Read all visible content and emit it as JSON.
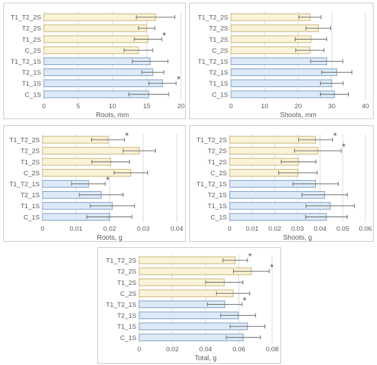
{
  "colors": {
    "series_1S_fill": "#dceaf7",
    "series_1S_stroke": "#7a9cc4",
    "series_2S_fill": "#fbf3d8",
    "series_2S_stroke": "#c8b274",
    "error_bar": "#595959",
    "gridline": "#d9d9d9",
    "axis_text": "#595959"
  },
  "chart_data": [
    {
      "type": "bar",
      "orientation": "horizontal",
      "xlabel": "Roots, mm",
      "xlim": [
        0,
        20
      ],
      "xticks": [
        "0",
        "5",
        "10",
        "15",
        "20"
      ],
      "tick_values": [
        0,
        5,
        10,
        15,
        20
      ],
      "categories": [
        "T1_T2_2S",
        "T2_2S",
        "T1_2S",
        "C_2S",
        "T1_T2_1S",
        "T2_1S",
        "T1_1S",
        "C_1S"
      ],
      "groups": [
        "2S",
        "2S",
        "2S",
        "2S",
        "1S",
        "1S",
        "1S",
        "1S"
      ],
      "values": [
        16.3,
        15.0,
        15.2,
        13.8,
        15.5,
        15.9,
        17.3,
        15.3
      ],
      "errors": [
        2.8,
        1.2,
        2.0,
        2.1,
        2.6,
        1.6,
        2.0,
        2.9
      ],
      "significant": [
        false,
        false,
        true,
        false,
        false,
        false,
        true,
        false
      ],
      "marker": "*",
      "grid": true
    },
    {
      "type": "bar",
      "orientation": "horizontal",
      "xlabel": "Shoots, mm",
      "xlim": [
        0,
        40
      ],
      "xticks": [
        "0",
        "10",
        "20",
        "30",
        "40"
      ],
      "tick_values": [
        0,
        10,
        20,
        30,
        40
      ],
      "categories": [
        "T1_T2_2S",
        "T2_2S",
        "T1_2S",
        "C_2S",
        "T1_T2_1S",
        "T2_1S",
        "T1_1S",
        "C_1S"
      ],
      "groups": [
        "2S",
        "2S",
        "2S",
        "2S",
        "1S",
        "1S",
        "1S",
        "1S"
      ],
      "values": [
        23.5,
        26.0,
        23.8,
        23.5,
        28.5,
        31.5,
        30.0,
        30.8
      ],
      "errors": [
        3.3,
        3.7,
        4.7,
        4.2,
        4.8,
        4.5,
        3.4,
        4.2
      ],
      "significant": [
        false,
        false,
        false,
        false,
        false,
        false,
        false,
        false
      ],
      "marker": "*",
      "grid": true
    },
    {
      "type": "bar",
      "orientation": "horizontal",
      "xlabel": "Roots, g",
      "xlim": [
        0,
        0.04
      ],
      "xticks": [
        "0",
        "0.01",
        "0.02",
        "0.03",
        "0.04"
      ],
      "tick_values": [
        0,
        0.01,
        0.02,
        0.03,
        0.04
      ],
      "categories": [
        "T1_T2_2S",
        "T2_2S",
        "T1_2S",
        "C_2S",
        "T1_T2_1S",
        "T2_1S",
        "T1_1S",
        "C_1S"
      ],
      "groups": [
        "2S",
        "2S",
        "2S",
        "2S",
        "1S",
        "1S",
        "1S",
        "1S"
      ],
      "values": [
        0.0195,
        0.0288,
        0.0203,
        0.0263,
        0.0137,
        0.0175,
        0.0208,
        0.0199
      ],
      "errors": [
        0.0049,
        0.0048,
        0.0056,
        0.005,
        0.005,
        0.0065,
        0.0066,
        0.0067
      ],
      "significant": [
        true,
        false,
        false,
        false,
        true,
        false,
        false,
        false
      ],
      "marker": "*",
      "grid": true
    },
    {
      "type": "bar",
      "orientation": "horizontal",
      "xlabel": "Shoots, g",
      "xlim": [
        0,
        0.06
      ],
      "xticks": [
        "0",
        "0.01",
        "0.02",
        "0.03",
        "0.04",
        "0.05",
        "0.06"
      ],
      "tick_values": [
        0,
        0.01,
        0.02,
        0.03,
        0.04,
        0.05,
        0.06
      ],
      "categories": [
        "T1_T2_2S",
        "T2_2S",
        "T1_2S",
        "C_2S",
        "T1_T2_1S",
        "T2_1S",
        "T1_1S",
        "C_1S"
      ],
      "groups": [
        "2S",
        "2S",
        "2S",
        "2S",
        "1S",
        "1S",
        "1S",
        "1S"
      ],
      "values": [
        0.038,
        0.039,
        0.0305,
        0.0302,
        0.038,
        0.042,
        0.0445,
        0.0428
      ],
      "errors": [
        0.0075,
        0.0103,
        0.0077,
        0.0085,
        0.01,
        0.01,
        0.0107,
        0.0092
      ],
      "significant": [
        true,
        true,
        false,
        false,
        false,
        false,
        false,
        false
      ],
      "marker": "*",
      "grid": true
    },
    {
      "type": "bar",
      "orientation": "horizontal",
      "xlabel": "Total, g",
      "xlim": [
        0,
        0.08
      ],
      "xticks": [
        "0",
        "0.02",
        "0.04",
        "0.06",
        "0.08"
      ],
      "tick_values": [
        0,
        0.02,
        0.04,
        0.06,
        0.08
      ],
      "categories": [
        "T1_T2_2S",
        "T2_2S",
        "T1_2S",
        "C_2S",
        "T1_T2_1S",
        "T2_1S",
        "T1_1S",
        "C_1S"
      ],
      "groups": [
        "2S",
        "2S",
        "2S",
        "2S",
        "1S",
        "1S",
        "1S",
        "1S"
      ],
      "values": [
        0.0578,
        0.0675,
        0.0512,
        0.0565,
        0.0515,
        0.0595,
        0.0652,
        0.0627
      ],
      "errors": [
        0.0074,
        0.0108,
        0.0112,
        0.01,
        0.0104,
        0.0105,
        0.0105,
        0.0103
      ],
      "significant": [
        true,
        true,
        false,
        false,
        true,
        false,
        false,
        false
      ],
      "marker": "*",
      "grid": true
    }
  ]
}
